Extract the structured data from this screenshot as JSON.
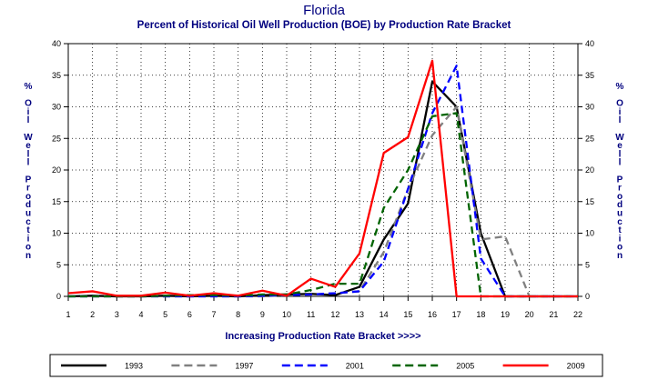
{
  "chart_data": {
    "type": "line",
    "title": "Florida",
    "subtitle": "Percent of Historical Oil Well Production (BOE) by Production Rate Bracket",
    "xlabel": "Increasing Production Rate Bracket >>>>",
    "ylabel": "% Oil Well Production",
    "x": [
      1,
      2,
      3,
      4,
      5,
      6,
      7,
      8,
      9,
      10,
      11,
      12,
      13,
      14,
      15,
      16,
      17,
      18,
      19,
      20,
      21,
      22
    ],
    "xlim": [
      1,
      22
    ],
    "ylim": [
      0,
      40
    ],
    "yticks": [
      0,
      5,
      10,
      15,
      20,
      25,
      30,
      35,
      40
    ],
    "grid": true,
    "legend_position": "bottom",
    "series": [
      {
        "name": "1993",
        "color": "#000000",
        "dash": "solid",
        "values": [
          0,
          0.1,
          0,
          0,
          0.1,
          0,
          0.1,
          0,
          0.2,
          0.3,
          0.4,
          0.2,
          1.5,
          9,
          14.7,
          34,
          30,
          10,
          0,
          0,
          0,
          0
        ]
      },
      {
        "name": "1997",
        "color": "#808080",
        "dash": "dash",
        "values": [
          0,
          0,
          0,
          0,
          0,
          0,
          0,
          0,
          0,
          0.2,
          0.3,
          0.5,
          0.8,
          7,
          17,
          25.5,
          30,
          9,
          9.5,
          0,
          0,
          0
        ]
      },
      {
        "name": "2001",
        "color": "#0000ff",
        "dash": "dash",
        "values": [
          0,
          0,
          0,
          0,
          0,
          0,
          0,
          0,
          0.1,
          0.2,
          0.3,
          0.5,
          0.8,
          5.5,
          17,
          29,
          36.5,
          6,
          0,
          0,
          0,
          0
        ]
      },
      {
        "name": "2005",
        "color": "#006400",
        "dash": "dash",
        "values": [
          0,
          0,
          0,
          0,
          0.1,
          0.2,
          0.2,
          0.1,
          0.3,
          0.3,
          1,
          2,
          2,
          14,
          20,
          28.5,
          29,
          0,
          0,
          0,
          0,
          0
        ]
      },
      {
        "name": "2009",
        "color": "#ff0000",
        "dash": "solid",
        "values": [
          0.5,
          0.8,
          0.1,
          0.1,
          0.6,
          0.1,
          0.5,
          0.1,
          0.9,
          0.1,
          2.8,
          1.5,
          6.8,
          22.7,
          25.2,
          37.3,
          0,
          0,
          0,
          0,
          0,
          0
        ]
      }
    ]
  }
}
